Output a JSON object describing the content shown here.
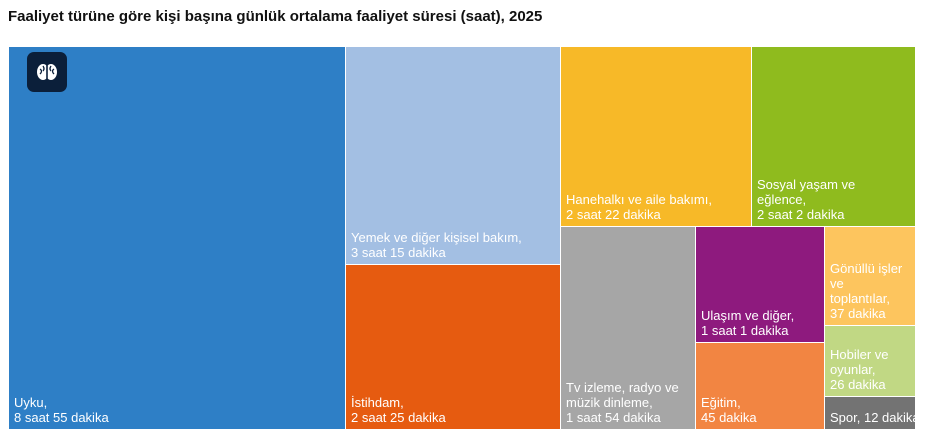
{
  "title": "Faaliyet türüne göre kişi başına günlük ortalama faaliyet süresi (saat), 2025",
  "logo_icon": "brain-icon",
  "chart_data": {
    "type": "treemap",
    "unit": "saat",
    "title": "Faaliyet türüne göre kişi başına günlük ortalama faaliyet süresi (saat), 2025",
    "items": [
      {
        "label_lines": [
          "Uyku,",
          "8 saat 55 dakika"
        ],
        "category": "Uyku",
        "value": 8.917,
        "color": "#2e7fc6"
      },
      {
        "label_lines": [
          "Yemek ve diğer kişisel bakım,",
          "3 saat 15 dakika"
        ],
        "category": "Yemek ve diğer kişisel bakım",
        "value": 3.25,
        "color": "#a3bfe3"
      },
      {
        "label_lines": [
          "İstihdam,",
          "2 saat 25 dakika"
        ],
        "category": "İstihdam",
        "value": 2.417,
        "color": "#e65b10"
      },
      {
        "label_lines": [
          "Hanehalkı ve aile bakımı,",
          "2 saat 22 dakika"
        ],
        "category": "Hanehalkı ve aile bakımı",
        "value": 2.367,
        "color": "#f7b928"
      },
      {
        "label_lines": [
          "Sosyal yaşam ve",
          "eğlence,",
          "2 saat 2 dakika"
        ],
        "category": "Sosyal yaşam ve eğlence",
        "value": 2.033,
        "color": "#8fbb1e"
      },
      {
        "label_lines": [
          "Tv izleme, radyo ve",
          "müzik dinleme,",
          "1 saat 54 dakika"
        ],
        "category": "Tv izleme, radyo ve müzik dinleme",
        "value": 1.9,
        "color": "#a6a6a6"
      },
      {
        "label_lines": [
          "Ulaşım ve diğer,",
          "1 saat 1 dakika"
        ],
        "category": "Ulaşım ve diğer",
        "value": 1.017,
        "color": "#8e1a7e"
      },
      {
        "label_lines": [
          "Eğitim,",
          "45 dakika"
        ],
        "category": "Eğitim",
        "value": 0.75,
        "color": "#f28542"
      },
      {
        "label_lines": [
          "Gönüllü işler",
          "ve",
          "toplantılar,",
          "37 dakika"
        ],
        "category": "Gönüllü işler ve toplantılar",
        "value": 0.617,
        "color": "#fdc55e"
      },
      {
        "label_lines": [
          "Hobiler ve",
          "oyunlar,",
          "26 dakika"
        ],
        "category": "Hobiler ve oyunlar",
        "value": 0.433,
        "color": "#c1d884"
      },
      {
        "label_lines": [
          "Spor, 12 dakika"
        ],
        "category": "Spor",
        "value": 0.2,
        "color": "#737373"
      }
    ]
  }
}
